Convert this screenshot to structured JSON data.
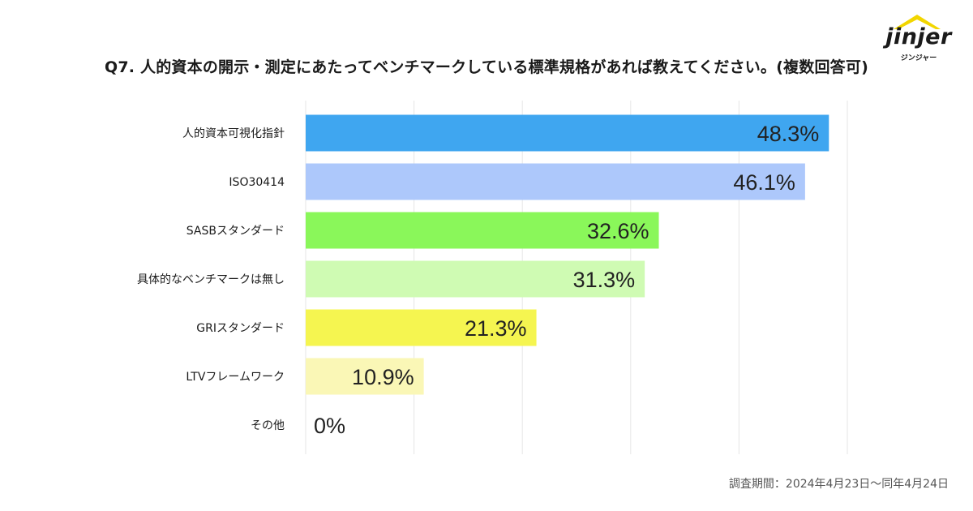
{
  "title": "Q7. 人的資本の開示・測定にあたってベンチマークしている標準規格があれば教えてください。(複数回答可)",
  "logo": {
    "wordmark": "jinjer",
    "sub": "ジンジャー",
    "accent": "#F2D600"
  },
  "footnote": "調査期間：2024年4月23日〜同年4月24日",
  "chart_data": {
    "type": "bar",
    "orientation": "horizontal",
    "title": "Q7. 人的資本の開示・測定にあたってベンチマークしている標準規格があれば教えてください。(複数回答可)",
    "xlabel": "",
    "ylabel": "",
    "xlim": [
      0,
      50
    ],
    "grid": true,
    "categories": [
      "人的資本可視化指針",
      "ISO30414",
      "SASBスタンダード",
      "具体的なベンチマークは無し",
      "GRIスタンダード",
      "LTVフレームワーク",
      "その他"
    ],
    "values": [
      48.3,
      46.1,
      32.6,
      31.3,
      21.3,
      10.9,
      0
    ],
    "labels": [
      "48.3%",
      "46.1%",
      "32.6%",
      "31.3%",
      "21.3%",
      "10.9%",
      "0%"
    ],
    "colors": [
      "#3FA6F0",
      "#ADC8FB",
      "#8AF75A",
      "#CFFBB3",
      "#F5F550",
      "#FAF7B6",
      "#FFFFFF"
    ]
  }
}
